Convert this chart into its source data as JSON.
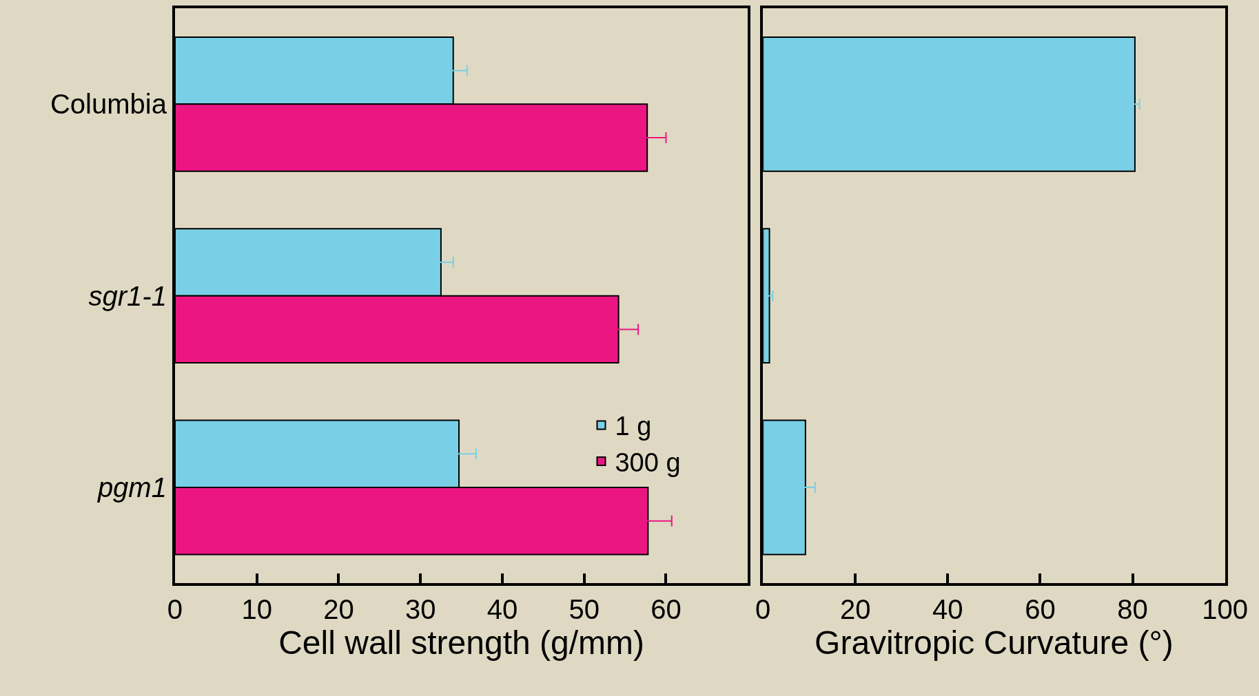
{
  "chart_data": [
    {
      "type": "bar",
      "orientation": "horizontal",
      "xlabel": "Cell wall strength (g/mm)",
      "categories": [
        "Columbia",
        "sgr1-1",
        "pgm1"
      ],
      "xlim": [
        0,
        70
      ],
      "xticks": [
        0,
        10,
        20,
        30,
        40,
        50,
        60
      ],
      "legend": "bottom right",
      "grid": false,
      "series": [
        {
          "name": "1 g",
          "color": "#79d0e6",
          "values": [
            34.0,
            32.5,
            34.7
          ],
          "errors": [
            1.7,
            1.5,
            2.1
          ]
        },
        {
          "name": "300 g",
          "color": "#ec1683",
          "values": [
            57.7,
            54.2,
            57.8
          ],
          "errors": [
            2.3,
            2.4,
            2.9
          ]
        }
      ]
    },
    {
      "type": "bar",
      "orientation": "horizontal",
      "xlabel": "Gravitropic Curvature (°)",
      "categories": [
        null,
        null,
        null
      ],
      "xlim": [
        0,
        100
      ],
      "xticks": [
        0,
        20,
        40,
        60,
        80,
        100
      ],
      "tick_labels": "x",
      "grid": false,
      "series": [
        {
          "color": "#79d0e6",
          "values": [
            80.5,
            1.4,
            9.2
          ],
          "errors": [
            1.0,
            0.7,
            2.1
          ]
        }
      ]
    }
  ]
}
